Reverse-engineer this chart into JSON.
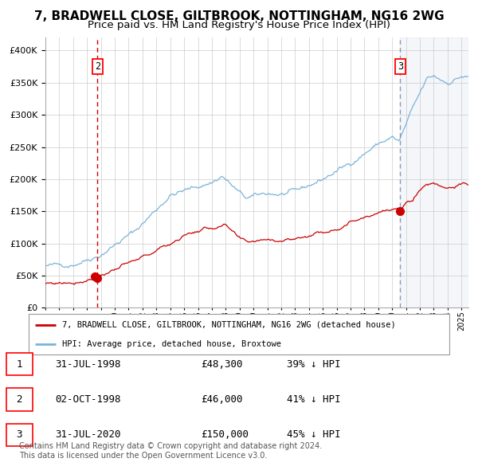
{
  "title": "7, BRADWELL CLOSE, GILTBROOK, NOTTINGHAM, NG16 2WG",
  "subtitle": "Price paid vs. HM Land Registry's House Price Index (HPI)",
  "xlim_start": 1995.0,
  "xlim_end": 2025.5,
  "ylim": [
    0,
    420000
  ],
  "yticks": [
    0,
    50000,
    100000,
    150000,
    200000,
    250000,
    300000,
    350000,
    400000
  ],
  "hpi_color": "#7ab3d9",
  "price_color": "#cc0000",
  "sale1_date": 1998.583,
  "sale1_price": 48300,
  "sale2_date": 1998.75,
  "sale2_price": 46000,
  "sale3_date": 2020.583,
  "sale3_price": 150000,
  "vline_red_date": 1998.75,
  "vline_blue_date": 2020.583,
  "forecast_start": 2020.583,
  "legend_label_red": "7, BRADWELL CLOSE, GILTBROOK, NOTTINGHAM, NG16 2WG (detached house)",
  "legend_label_blue": "HPI: Average price, detached house, Broxtowe",
  "table_rows": [
    [
      "1",
      "31-JUL-1998",
      "£48,300",
      "39% ↓ HPI"
    ],
    [
      "2",
      "02-OCT-1998",
      "£46,000",
      "41% ↓ HPI"
    ],
    [
      "3",
      "31-JUL-2020",
      "£150,000",
      "45% ↓ HPI"
    ]
  ],
  "footer": "Contains HM Land Registry data © Crown copyright and database right 2024.\nThis data is licensed under the Open Government Licence v3.0.",
  "title_fontsize": 11,
  "subtitle_fontsize": 9.5,
  "tick_fontsize": 8,
  "label_fontsize": 8.5
}
